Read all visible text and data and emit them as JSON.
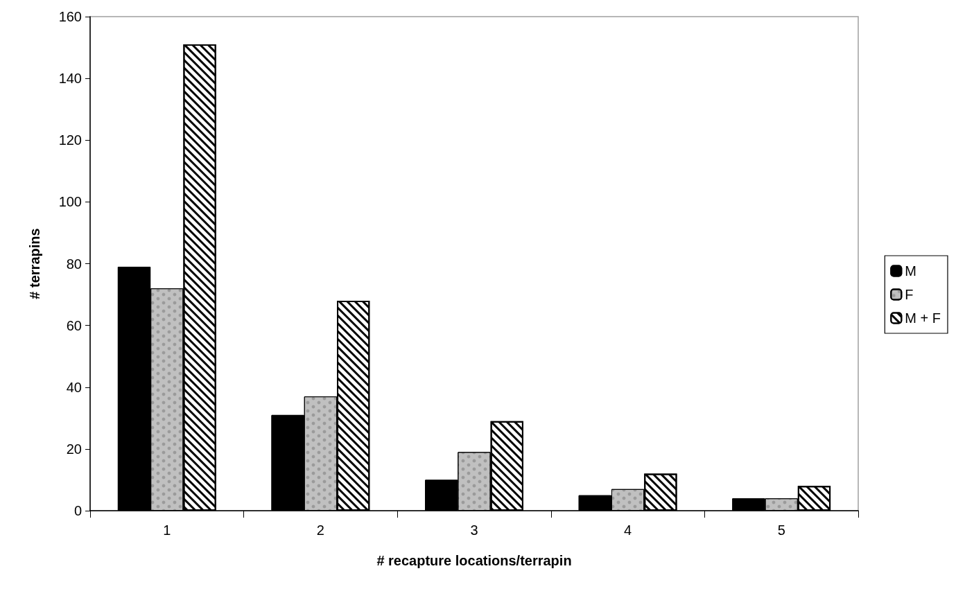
{
  "chart_data": {
    "type": "bar",
    "xlabel": "# recapture locations/terrapin",
    "ylabel": "# terrapins",
    "categories": [
      "1",
      "2",
      "3",
      "4",
      "5"
    ],
    "series": [
      {
        "name": "M",
        "color": "#000000",
        "values": [
          79,
          31,
          10,
          5,
          4
        ]
      },
      {
        "name": "F",
        "color": "#c0c0c0",
        "values": [
          72,
          37,
          19,
          7,
          4
        ]
      },
      {
        "name": "M + F",
        "color": "#ffffff",
        "values": [
          151,
          68,
          29,
          12,
          8
        ]
      }
    ],
    "ylim": [
      0,
      160
    ],
    "yticks": [
      0,
      20,
      40,
      60,
      80,
      100,
      120,
      140,
      160
    ],
    "grid": false,
    "legend": "right"
  }
}
